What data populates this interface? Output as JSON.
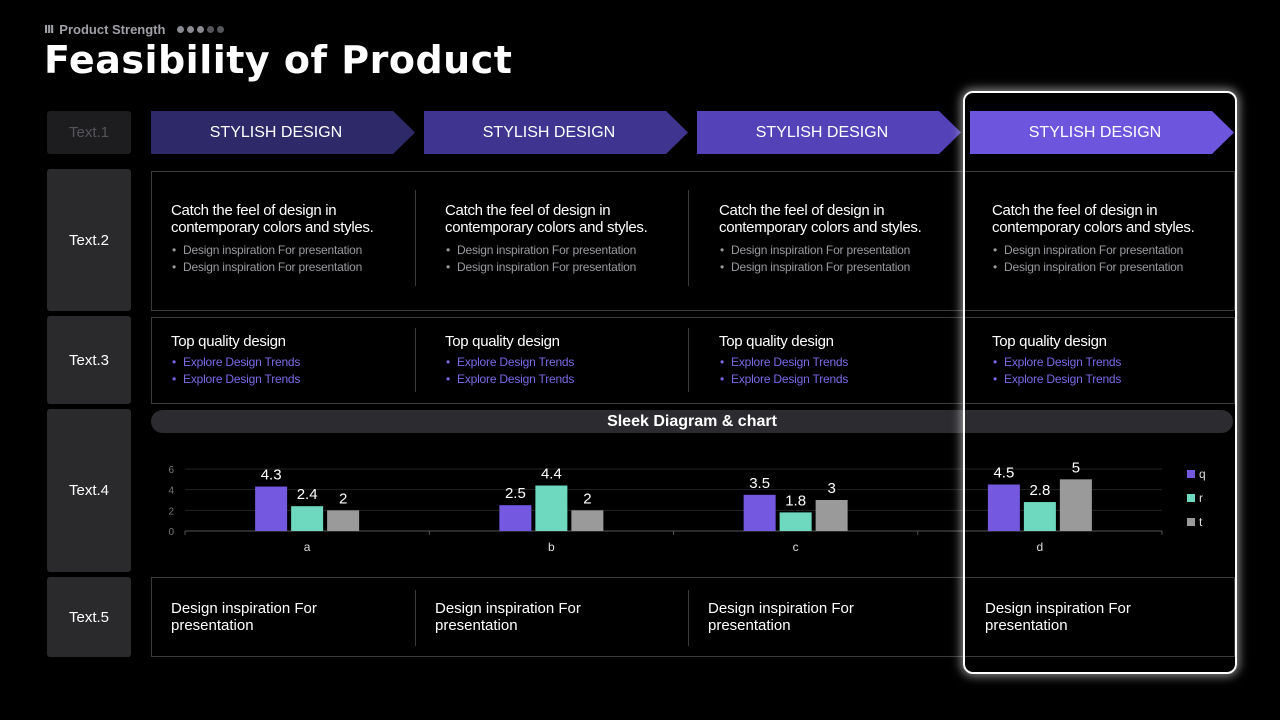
{
  "header": {
    "eyebrow": "Product Strength",
    "title": "Feasibility of Product"
  },
  "row_labels": [
    "Text.1",
    "Text.2",
    "Text.3",
    "Text.4",
    "Text.5"
  ],
  "steps": [
    {
      "label": "STYLISH DESIGN",
      "color": "#2e2a6a"
    },
    {
      "label": "STYLISH DESIGN",
      "color": "#3f3590"
    },
    {
      "label": "STYLISH DESIGN",
      "color": "#5443b8"
    },
    {
      "label": "STYLISH DESIGN",
      "color": "#6e55de"
    }
  ],
  "row2": [
    {
      "head": "Catch the feel of design in contemporary colors and styles.",
      "bullets": [
        "Design inspiration For presentation",
        "Design inspiration For presentation"
      ]
    },
    {
      "head": "Catch the feel of design in contemporary colors and styles.",
      "bullets": [
        "Design inspiration For presentation",
        "Design inspiration For presentation"
      ]
    },
    {
      "head": "Catch the feel of design in contemporary colors and styles.",
      "bullets": [
        "Design inspiration For presentation",
        "Design inspiration For presentation"
      ]
    },
    {
      "head": "Catch the feel of design in contemporary colors and styles.",
      "bullets": [
        "Design inspiration For presentation",
        "Design inspiration For presentation"
      ]
    }
  ],
  "row3": [
    {
      "head": "Top quality design",
      "bullets": [
        "Explore Design Trends",
        "Explore Design Trends"
      ]
    },
    {
      "head": "Top quality design",
      "bullets": [
        "Explore Design Trends",
        "Explore Design Trends"
      ]
    },
    {
      "head": "Top quality design",
      "bullets": [
        "Explore Design Trends",
        "Explore Design Trends"
      ]
    },
    {
      "head": "Top quality design",
      "bullets": [
        "Explore Design Trends",
        "Explore Design Trends"
      ]
    }
  ],
  "chart_title": "Sleek Diagram & chart",
  "chart_data": {
    "type": "bar",
    "categories": [
      "a",
      "b",
      "c",
      "d"
    ],
    "series": [
      {
        "name": "q",
        "values": [
          4.3,
          2.5,
          3.5,
          4.5
        ],
        "color": "#7458e0"
      },
      {
        "name": "r",
        "values": [
          2.4,
          4.4,
          1.8,
          2.8
        ],
        "color": "#6fd9c0"
      },
      {
        "name": "t",
        "values": [
          2,
          2,
          3,
          5
        ],
        "color": "#9a9a9a"
      }
    ],
    "yticks": [
      "0",
      "2",
      "4",
      "6"
    ],
    "ylim": [
      0,
      6
    ],
    "legend": "right",
    "grid": true
  },
  "row5": [
    "Design inspiration For presentation",
    "Design inspiration For presentation",
    "Design inspiration For presentation",
    "Design inspiration For presentation"
  ]
}
